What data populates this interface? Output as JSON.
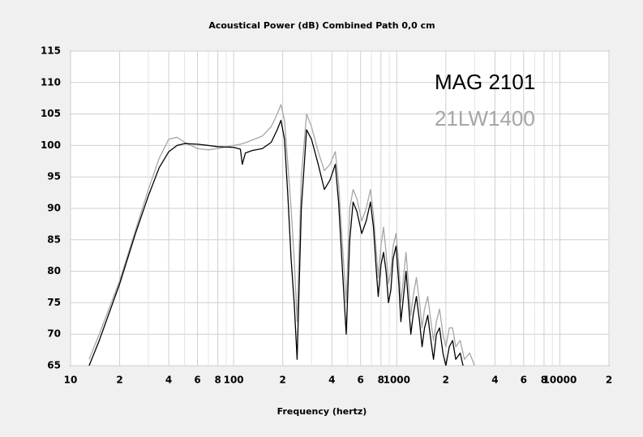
{
  "chart_data": {
    "type": "line",
    "title": "Acoustical Power (dB)   Combined   Path 0,0 cm",
    "x_label": "Frequency (hertz)",
    "x_scale": "log",
    "xlim": [
      10,
      20000
    ],
    "ylim": [
      65,
      115
    ],
    "xticks": [
      10,
      {
        "value": 20,
        "label": "2"
      },
      {
        "value": 40,
        "label": "4"
      },
      {
        "value": 60,
        "label": "6"
      },
      {
        "value": 80,
        "label": "8"
      },
      100,
      {
        "value": 200,
        "label": "2"
      },
      {
        "value": 400,
        "label": "4"
      },
      {
        "value": 600,
        "label": "6"
      },
      {
        "value": 800,
        "label": "8"
      },
      1000,
      {
        "value": 2000,
        "label": "2"
      },
      {
        "value": 4000,
        "label": "4"
      },
      {
        "value": 6000,
        "label": "6"
      },
      {
        "value": 8000,
        "label": "8"
      },
      10000,
      {
        "value": 20000,
        "label": "2"
      }
    ],
    "x_minor_gridlines": [
      30,
      50,
      70,
      90,
      300,
      500,
      700,
      900,
      3000,
      5000,
      7000,
      9000
    ],
    "yticks": [
      65,
      70,
      75,
      80,
      85,
      90,
      95,
      100,
      105,
      110,
      115
    ],
    "grid": true,
    "legend": "top-right",
    "series": [
      {
        "name": "21LW1400",
        "color": "#a6a6a6",
        "x": [
          13,
          15,
          20,
          25,
          30,
          35,
          40,
          45,
          50,
          60,
          70,
          80,
          100,
          110,
          120,
          150,
          170,
          185,
          195,
          205,
          215,
          225,
          235,
          245,
          260,
          280,
          300,
          330,
          360,
          390,
          420,
          440,
          465,
          490,
          515,
          540,
          570,
          610,
          650,
          690,
          720,
          750,
          770,
          800,
          830,
          860,
          890,
          920,
          950,
          990,
          1030,
          1060,
          1100,
          1140,
          1180,
          1220,
          1260,
          1320,
          1380,
          1430,
          1480,
          1550,
          1620,
          1680,
          1750,
          1830,
          1920,
          2000,
          2100,
          2200,
          2300,
          2450,
          2600,
          2800,
          3000
        ],
        "values": [
          66,
          70,
          78.5,
          86.5,
          93,
          98,
          101,
          101.3,
          100.5,
          99.5,
          99.3,
          99.5,
          100,
          100.2,
          100.5,
          101.5,
          103,
          105,
          106.5,
          104,
          97,
          90,
          82,
          72,
          95,
          105,
          103,
          99,
          96,
          97,
          99,
          94,
          84,
          75,
          90,
          93,
          91.5,
          88,
          90,
          93,
          89,
          83,
          79,
          84,
          87,
          83,
          78,
          80,
          84,
          86,
          81,
          75,
          79,
          83,
          78,
          73,
          76,
          79,
          75,
          71,
          74,
          76,
          72,
          69,
          72,
          74,
          70,
          68,
          71,
          71,
          68,
          69,
          66,
          67,
          65
        ]
      },
      {
        "name": "MAG 2101",
        "color": "#000000",
        "x": [
          13,
          15,
          20,
          25,
          30,
          35,
          40,
          45,
          50,
          60,
          70,
          80,
          100,
          110,
          113,
          118,
          130,
          150,
          170,
          185,
          195,
          205,
          215,
          225,
          235,
          245,
          260,
          280,
          300,
          330,
          360,
          390,
          420,
          440,
          465,
          490,
          515,
          540,
          570,
          610,
          650,
          690,
          720,
          750,
          770,
          800,
          830,
          860,
          890,
          920,
          950,
          990,
          1030,
          1060,
          1100,
          1140,
          1180,
          1220,
          1260,
          1320,
          1380,
          1430,
          1480,
          1550,
          1620,
          1680,
          1750,
          1830,
          1920,
          2000,
          2100,
          2200,
          2300,
          2450,
          2550
        ],
        "values": [
          65,
          69,
          78,
          86,
          92,
          96.5,
          99,
          100,
          100.3,
          100.2,
          100,
          99.8,
          99.7,
          99.4,
          97,
          98.8,
          99.2,
          99.5,
          100.5,
          102.5,
          104,
          101,
          92,
          82,
          75,
          66,
          90,
          102.5,
          101,
          97,
          93,
          94.5,
          97,
          91,
          80,
          70,
          85,
          91,
          89.5,
          86,
          88,
          91,
          87,
          80,
          76,
          81,
          83,
          80,
          75,
          77,
          82,
          84,
          78,
          72,
          76,
          80,
          75,
          70,
          73,
          76,
          72,
          68,
          71,
          73,
          69,
          66,
          70,
          71,
          67,
          65,
          68,
          69,
          66,
          67,
          65
        ]
      }
    ]
  }
}
